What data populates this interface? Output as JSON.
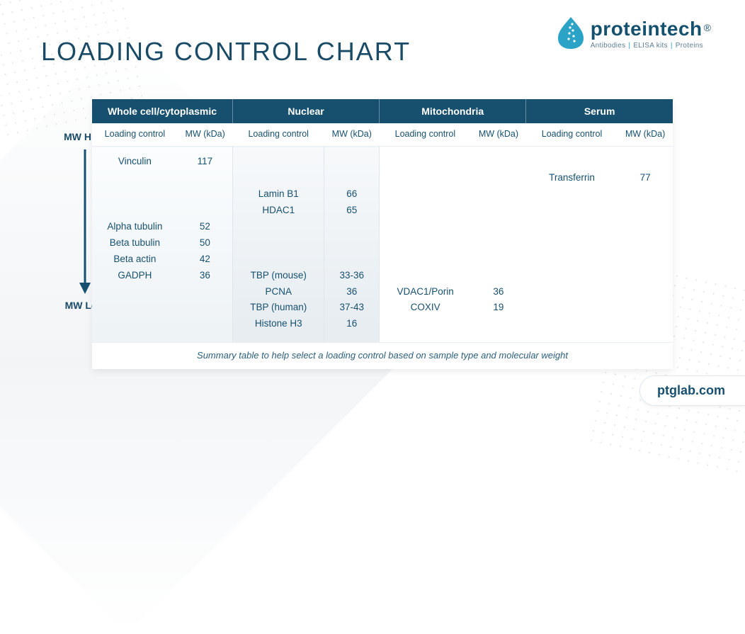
{
  "page": {
    "title": "LOADING CONTROL CHART",
    "caption": "Summary table to help select a loading control based on sample type and molecular weight",
    "url": "ptglab.com",
    "colors": {
      "header_bg": "#17506f",
      "header_text": "#ffffff",
      "text": "#17506f",
      "accent": "#2aa3c7"
    }
  },
  "logo": {
    "brand": "proteintech",
    "registered": "®",
    "tagline_parts": [
      "Antibodies",
      "ELISA kits",
      "Proteins"
    ]
  },
  "axis": {
    "high": "MW High",
    "low": "MW Low"
  },
  "chart": {
    "type": "table",
    "groups": [
      {
        "title": "Whole cell/cytoplasmic"
      },
      {
        "title": "Nuclear"
      },
      {
        "title": "Mitochondria"
      },
      {
        "title": "Serum"
      }
    ],
    "sub_headers": {
      "loading": "Loading control",
      "mw": "MW (kDa)"
    },
    "rows_count": 11,
    "data": {
      "whole": [
        {
          "name": "Vinculin",
          "mw": "117",
          "row": 0
        },
        {
          "name": "Alpha tubulin",
          "mw": "52",
          "row": 4
        },
        {
          "name": "Beta tubulin",
          "mw": "50",
          "row": 5
        },
        {
          "name": "Beta actin",
          "mw": "42",
          "row": 6
        },
        {
          "name": "GADPH",
          "mw": "36",
          "row": 7
        }
      ],
      "nuclear": [
        {
          "name": "Lamin B1",
          "mw": "66",
          "row": 2
        },
        {
          "name": "HDAC1",
          "mw": "65",
          "row": 3
        },
        {
          "name": "TBP (mouse)",
          "mw": "33-36",
          "row": 7
        },
        {
          "name": "PCNA",
          "mw": "36",
          "row": 8
        },
        {
          "name": "TBP (human)",
          "mw": "37-43",
          "row": 9
        },
        {
          "name": "Histone H3",
          "mw": "16",
          "row": 10
        }
      ],
      "mito": [
        {
          "name": "VDAC1/Porin",
          "mw": "36",
          "row": 8
        },
        {
          "name": "COXIV",
          "mw": "19",
          "row": 9
        }
      ],
      "serum": [
        {
          "name": "Transferrin",
          "mw": "77",
          "row": 1
        }
      ]
    }
  }
}
